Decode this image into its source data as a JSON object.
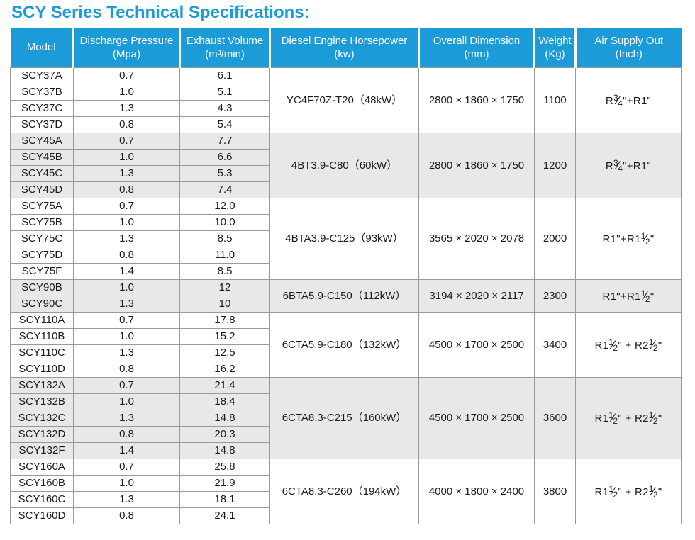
{
  "title": "SCY Series Technical Specifications:",
  "colors": {
    "accent_blue": "#1b9cd8",
    "shaded_row_bg": "#e8e8ea",
    "grid_border": "#999999",
    "header_text": "#ffffff",
    "body_text": "#1b1b1b"
  },
  "table": {
    "columns": [
      {
        "id": "model",
        "line1": "Model",
        "line2": ""
      },
      {
        "id": "pressure",
        "line1": "Discharge Pressure",
        "line2": "(Mpa)"
      },
      {
        "id": "volume",
        "line1": "Exhaust Volume",
        "line2": "(m³/min)"
      },
      {
        "id": "engine",
        "line1": "Diesel Engine Horsepower",
        "line2": "(kw)"
      },
      {
        "id": "dimension",
        "line1": "Overall Dimension",
        "line2": "(mm)"
      },
      {
        "id": "weight",
        "line1": "Weight",
        "line2": "(Kg)"
      },
      {
        "id": "air",
        "line1": "Air Supply Out",
        "line2": "(Inch)"
      }
    ],
    "groups": [
      {
        "shaded": false,
        "engine": "YC4F70Z-T20（48kW）",
        "dimension": "2800 × 1860 × 1750",
        "weight": "1100",
        "air_supply": "R¾\"+R1\"",
        "rows": [
          {
            "model": "SCY37A",
            "pressure": "0.7",
            "volume": "6.1"
          },
          {
            "model": "SCY37B",
            "pressure": "1.0",
            "volume": "5.1"
          },
          {
            "model": "SCY37C",
            "pressure": "1.3",
            "volume": "4.3"
          },
          {
            "model": "SCY37D",
            "pressure": "0.8",
            "volume": "5.4"
          }
        ]
      },
      {
        "shaded": true,
        "engine": "4BT3.9-C80（60kW）",
        "dimension": "2800 × 1860 × 1750",
        "weight": "1200",
        "air_supply": "R¾\"+R1\"",
        "rows": [
          {
            "model": "SCY45A",
            "pressure": "0.7",
            "volume": "7.7"
          },
          {
            "model": "SCY45B",
            "pressure": "1.0",
            "volume": "6.6"
          },
          {
            "model": "SCY45C",
            "pressure": "1.3",
            "volume": "5.3"
          },
          {
            "model": "SCY45D",
            "pressure": "0.8",
            "volume": "7.4"
          }
        ]
      },
      {
        "shaded": false,
        "engine": "4BTA3.9-C125（93kW）",
        "dimension": "3565 × 2020 × 2078",
        "weight": "2000",
        "air_supply": "R1\"+R1½\"",
        "rows": [
          {
            "model": "SCY75A",
            "pressure": "0.7",
            "volume": "12.0"
          },
          {
            "model": "SCY75B",
            "pressure": "1.0",
            "volume": "10.0"
          },
          {
            "model": "SCY75C",
            "pressure": "1.3",
            "volume": "8.5"
          },
          {
            "model": "SCY75D",
            "pressure": "0.8",
            "volume": "11.0"
          },
          {
            "model": "SCY75F",
            "pressure": "1.4",
            "volume": "8.5"
          }
        ]
      },
      {
        "shaded": true,
        "engine": "6BTA5.9-C150（112kW）",
        "dimension": "3194 × 2020 × 2117",
        "weight": "2300",
        "air_supply": "R1\"+R1½\"",
        "rows": [
          {
            "model": "SCY90B",
            "pressure": "1.0",
            "volume": "12"
          },
          {
            "model": "SCY90C",
            "pressure": "1.3",
            "volume": "10"
          }
        ]
      },
      {
        "shaded": false,
        "engine": "6CTA5.9-C180（132kW）",
        "dimension": "4500 × 1700 × 2500",
        "weight": "3400",
        "air_supply": "R1½\" + R2½\"",
        "rows": [
          {
            "model": "SCY110A",
            "pressure": "0.7",
            "volume": "17.8"
          },
          {
            "model": "SCY110B",
            "pressure": "1.0",
            "volume": "15.2"
          },
          {
            "model": "SCY110C",
            "pressure": "1.3",
            "volume": "12.5"
          },
          {
            "model": "SCY110D",
            "pressure": "0.8",
            "volume": "16.2"
          }
        ]
      },
      {
        "shaded": true,
        "engine": "6CTA8.3-C215（160kW）",
        "dimension": "4500 × 1700 × 2500",
        "weight": "3600",
        "air_supply": "R1½\" + R2½\"",
        "rows": [
          {
            "model": "SCY132A",
            "pressure": "0.7",
            "volume": "21.4"
          },
          {
            "model": "SCY132B",
            "pressure": "1.0",
            "volume": "18.4"
          },
          {
            "model": "SCY132C",
            "pressure": "1.3",
            "volume": "14.8"
          },
          {
            "model": "SCY132D",
            "pressure": "0.8",
            "volume": "20.3"
          },
          {
            "model": "SCY132F",
            "pressure": "1.4",
            "volume": "14.8"
          }
        ]
      },
      {
        "shaded": false,
        "engine": "6CTA8.3-C260（194kW）",
        "dimension": "4000 × 1800 × 2400",
        "weight": "3800",
        "air_supply": "R1½\" + R2½\"",
        "rows": [
          {
            "model": "SCY160A",
            "pressure": "0.7",
            "volume": "25.8"
          },
          {
            "model": "SCY160B",
            "pressure": "1.0",
            "volume": "21.9"
          },
          {
            "model": "SCY160C",
            "pressure": "1.3",
            "volume": "18.1"
          },
          {
            "model": "SCY160D",
            "pressure": "0.8",
            "volume": "24.1"
          }
        ]
      }
    ]
  }
}
